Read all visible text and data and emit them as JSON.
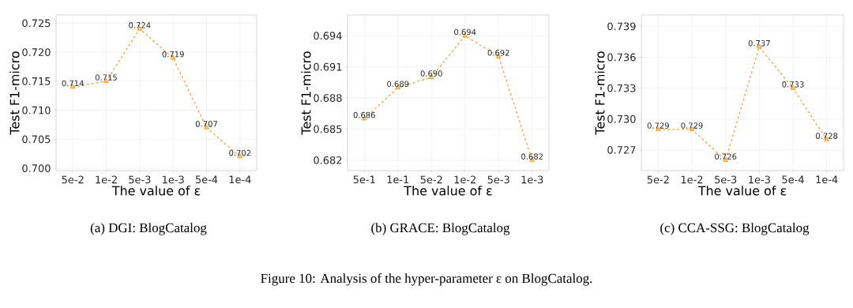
{
  "chart_data": [
    {
      "type": "line",
      "title": "(a)  DGI: BlogCatalog",
      "xlabel": "The value of ε",
      "ylabel": "Test F1-micro",
      "categories": [
        "5e-2",
        "1e-2",
        "5e-3",
        "1e-3",
        "5e-4",
        "1e-4"
      ],
      "series": [
        {
          "color": "#f5a442",
          "values": [
            0.714,
            0.715,
            0.724,
            0.719,
            0.707,
            0.702
          ]
        }
      ],
      "ylim": [
        0.6996,
        0.7264
      ],
      "yticks": [
        {
          "value": 0.7,
          "label": "0.700"
        },
        0.705,
        {
          "value": 0.71,
          "label": "0.710"
        },
        0.715,
        {
          "value": 0.72,
          "label": "0.720"
        },
        0.725
      ],
      "grid": true,
      "data_labels": true,
      "marker": "triangle",
      "line_style": "dashed"
    },
    {
      "type": "line",
      "title": "(b)  GRACE: BlogCatalog",
      "xlabel": "The value of ε",
      "ylabel": "Test F1-micro",
      "categories": [
        "5e-1",
        "1e-1",
        "5e-2",
        "1e-2",
        "5e-3",
        "1e-3"
      ],
      "series": [
        {
          "color": "#f5a442",
          "values": [
            0.686,
            0.689,
            0.69,
            0.694,
            0.692,
            0.682
          ],
          "value_labels": [
            "0.686",
            "0.689",
            "0.690",
            "0.694",
            "0.692",
            "0.682"
          ]
        }
      ],
      "ylim": [
        0.681,
        0.696
      ],
      "yticks": [
        0.682,
        0.685,
        0.688,
        0.691,
        0.694
      ],
      "grid": true,
      "marker": "triangle",
      "line_style": "dashed"
    },
    {
      "type": "line",
      "title": "(c)  CCA-SSG: BlogCatalog",
      "xlabel": "The value of ε",
      "ylabel": "Test F1-micro",
      "categories": [
        "5e-2",
        "1e-2",
        "5e-3",
        "1e-3",
        "5e-4",
        "1e-4"
      ],
      "series": [
        {
          "color": "#f5a442",
          "values": [
            0.729,
            0.729,
            0.726,
            0.737,
            0.733,
            0.728
          ]
        }
      ],
      "ylim": [
        0.725,
        0.7401
      ],
      "yticks": [
        0.727,
        {
          "value": 0.73,
          "label": "0.730"
        },
        0.733,
        0.736,
        0.739
      ],
      "grid": true,
      "data_labels": true,
      "marker": "triangle",
      "line_style": "dashed",
      "annotations": [
        "Figure 10: Analysis of the hyper-parameter ε on BlogCatalog."
      ]
    }
  ]
}
